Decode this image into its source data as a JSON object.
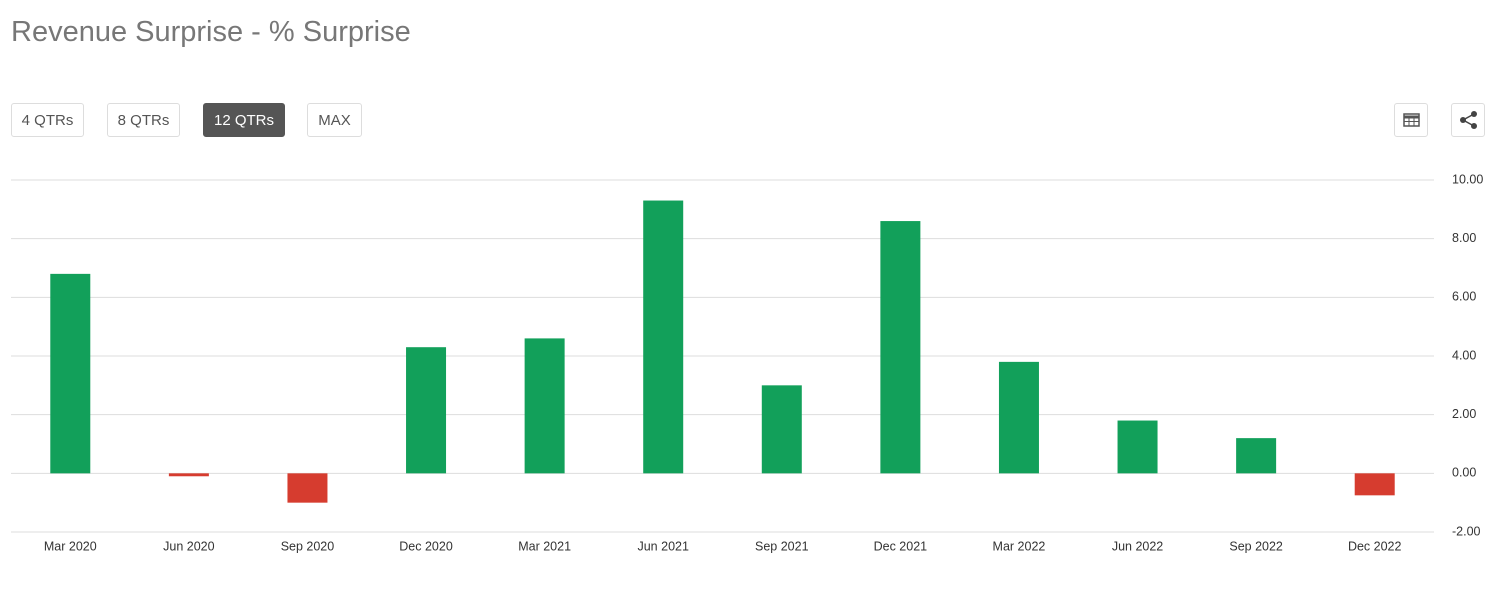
{
  "title": "Revenue Surprise - % Surprise",
  "buttons": [
    "4 QTRs",
    "8 QTRs",
    "12 QTRs",
    "MAX"
  ],
  "active_button": 2,
  "chart_data": {
    "type": "bar",
    "categories": [
      "Mar 2020",
      "Jun 2020",
      "Sep 2020",
      "Dec 2020",
      "Mar 2021",
      "Jun 2021",
      "Sep 2021",
      "Dec 2021",
      "Mar 2022",
      "Jun 2022",
      "Sep 2022",
      "Dec 2022"
    ],
    "values": [
      6.8,
      -0.1,
      -1.0,
      4.3,
      4.6,
      9.3,
      3.0,
      8.6,
      3.8,
      1.8,
      1.2,
      -0.75
    ],
    "color": "#12a05a",
    "negative_color": "#d63c2f",
    "ylim": [
      -2,
      10
    ],
    "yticks": [
      {
        "value": -2,
        "label": "-2.00"
      },
      {
        "value": 0,
        "label": "0.00"
      },
      {
        "value": 2,
        "label": "2.00"
      },
      {
        "value": 4,
        "label": "4.00"
      },
      {
        "value": 6,
        "label": "6.00"
      },
      {
        "value": 8,
        "label": "8.00"
      },
      {
        "value": 10,
        "label": "10.00"
      }
    ],
    "grid": true
  }
}
